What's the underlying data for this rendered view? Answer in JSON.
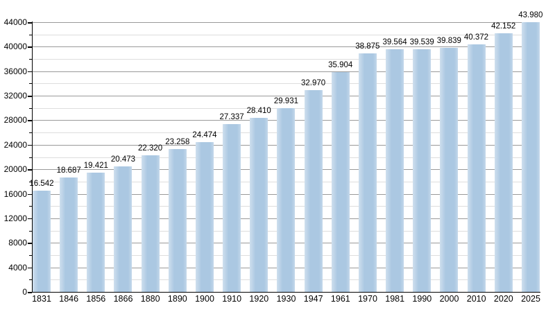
{
  "chart_data": {
    "type": "bar",
    "title": "",
    "xlabel": "",
    "ylabel": "",
    "categories": [
      "1831",
      "1846",
      "1856",
      "1866",
      "1880",
      "1890",
      "1900",
      "1910",
      "1920",
      "1930",
      "1947",
      "1961",
      "1970",
      "1981",
      "1990",
      "2000",
      "2010",
      "2020",
      "2025"
    ],
    "values": [
      16542,
      18687,
      19421,
      20473,
      22320,
      23258,
      24474,
      27337,
      28410,
      29931,
      32970,
      35904,
      38875,
      39564,
      39539,
      39839,
      40372,
      42152,
      43980
    ],
    "value_labels": [
      "16.542",
      "18.687",
      "19.421",
      "20.473",
      "22.320",
      "23.258",
      "24.474",
      "27.337",
      "28.410",
      "29.931",
      "32.970",
      "35.904",
      "38.875",
      "39.564",
      "39.539",
      "39.839",
      "40.372",
      "42.152",
      "43.980"
    ],
    "ylim": [
      0,
      44000
    ],
    "y_major_step": 4000,
    "y_minor_step": 2000,
    "y_tick_labels": [
      "0",
      "4000",
      "8000",
      "12000",
      "16000",
      "20000",
      "24000",
      "28000",
      "32000",
      "36000",
      "40000",
      "44000"
    ],
    "grid": "horizontal-major-and-minor",
    "legend": "none",
    "bar_color": "#abc8e2",
    "bar_edge_fade_color": "#cfdfee",
    "major_grid_color": "#999999",
    "minor_grid_color": "#dddddd",
    "axis_color": "#000000",
    "text_color": "#000000"
  }
}
